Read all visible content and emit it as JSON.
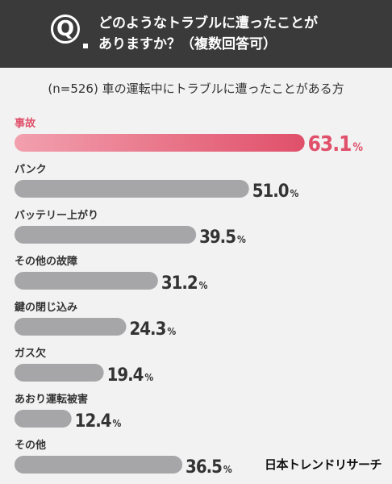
{
  "header": {
    "q_mark": "Q",
    "question_line1": "どのようなトラブルに遭ったことが",
    "question_line2": "ありますか？（複数回答可）"
  },
  "subtitle": "(n=526)  車の運転中にトラブルに遭ったことがある方",
  "brand": "日本トレンドリサーチ",
  "colors": {
    "highlight": "#e0506a",
    "bar": "#a6a6a8",
    "text": "#333333"
  },
  "chart_data": {
    "type": "bar",
    "orientation": "horizontal",
    "unit": "%",
    "categories": [
      "事故",
      "パンク",
      "バッテリー上がり",
      "その他の故障",
      "鍵の閉じ込み",
      "ガス欠",
      "あおり運転被害",
      "その他"
    ],
    "values": [
      63.1,
      51.0,
      39.5,
      31.2,
      24.3,
      19.4,
      12.4,
      36.5
    ],
    "value_labels": [
      "63.1",
      "51.0",
      "39.5",
      "31.2",
      "24.3",
      "19.4",
      "12.4",
      "36.5"
    ],
    "highlight_index": 0
  }
}
